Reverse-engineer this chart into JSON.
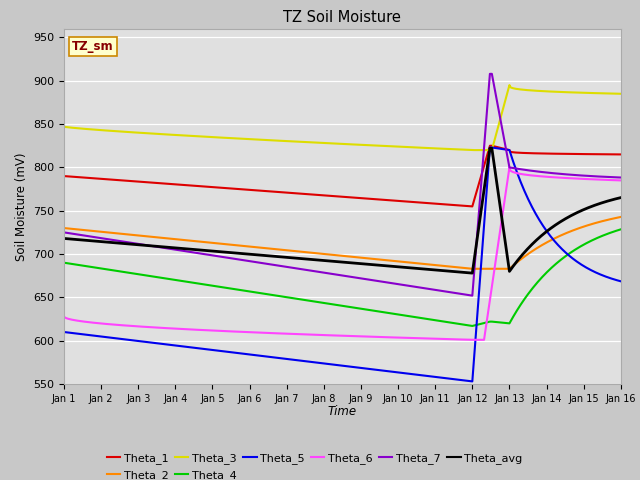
{
  "title": "TZ Soil Moisture",
  "xlabel": "Time",
  "ylabel": "Soil Moisture (mV)",
  "ylim": [
    550,
    960
  ],
  "yticks": [
    550,
    600,
    650,
    700,
    750,
    800,
    850,
    900,
    950
  ],
  "fig_facecolor": "#c8c8c8",
  "ax_facecolor": "#e0e0e0",
  "grid_color": "#ffffff",
  "legend_label": "TZ_sm",
  "series": {
    "Theta_1": {
      "color": "#dd0000",
      "lw": 1.5
    },
    "Theta_2": {
      "color": "#ff8800",
      "lw": 1.5
    },
    "Theta_3": {
      "color": "#dddd00",
      "lw": 1.5
    },
    "Theta_4": {
      "color": "#00cc00",
      "lw": 1.5
    },
    "Theta_5": {
      "color": "#0000ee",
      "lw": 1.5
    },
    "Theta_6": {
      "color": "#ff44ff",
      "lw": 1.5
    },
    "Theta_7": {
      "color": "#8800cc",
      "lw": 1.5
    },
    "Theta_avg": {
      "color": "#000000",
      "lw": 2.0
    }
  }
}
